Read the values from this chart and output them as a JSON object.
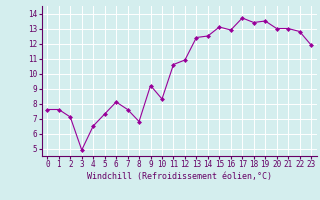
{
  "x": [
    0,
    1,
    2,
    3,
    4,
    5,
    6,
    7,
    8,
    9,
    10,
    11,
    12,
    13,
    14,
    15,
    16,
    17,
    18,
    19,
    20,
    21,
    22,
    23
  ],
  "y": [
    7.6,
    7.6,
    7.1,
    4.9,
    6.5,
    7.3,
    8.1,
    7.6,
    6.8,
    9.2,
    8.3,
    10.6,
    10.9,
    12.4,
    12.5,
    13.1,
    12.9,
    13.7,
    13.4,
    13.5,
    13.0,
    13.0,
    12.8,
    11.9
  ],
  "line_color": "#990099",
  "marker": "D",
  "marker_size": 2,
  "bg_color": "#d4eeee",
  "grid_color": "#ffffff",
  "xlabel": "Windchill (Refroidissement éolien,°C)",
  "xlabel_color": "#660066",
  "tick_color": "#660066",
  "axis_color": "#660066",
  "ylim": [
    4.5,
    14.5
  ],
  "xlim": [
    -0.5,
    23.5
  ],
  "yticks": [
    5,
    6,
    7,
    8,
    9,
    10,
    11,
    12,
    13,
    14
  ],
  "xticks": [
    0,
    1,
    2,
    3,
    4,
    5,
    6,
    7,
    8,
    9,
    10,
    11,
    12,
    13,
    14,
    15,
    16,
    17,
    18,
    19,
    20,
    21,
    22,
    23
  ],
  "tick_fontsize": 5.5,
  "xlabel_fontsize": 6.0
}
